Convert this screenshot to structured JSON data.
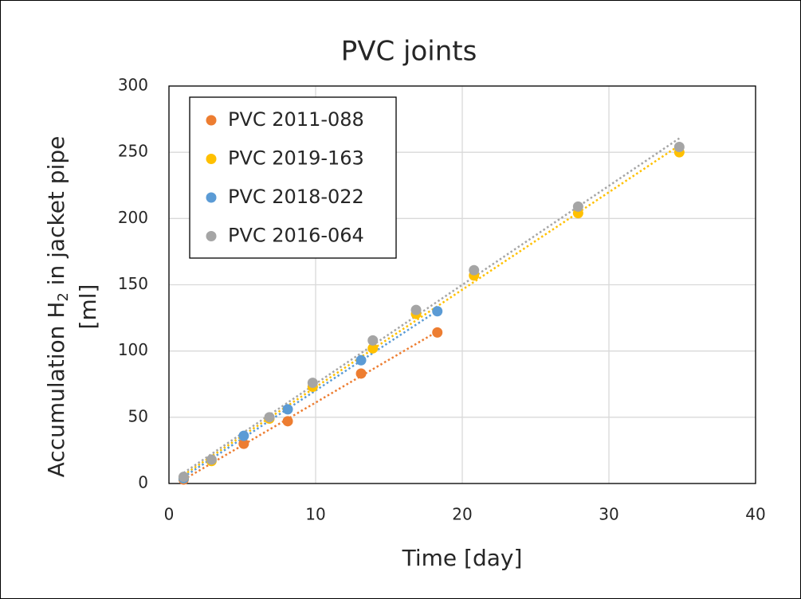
{
  "chart_data": {
    "type": "scatter",
    "title": "PVC joints",
    "xlabel": "Time [day]",
    "ylabel": {
      "main": "Accumulation H",
      "subscript": "2",
      "rest": " in jacket pipe",
      "line2": "[ml]"
    },
    "xlim": [
      0,
      40
    ],
    "xticks": [
      0,
      10,
      20,
      30,
      40
    ],
    "ylim": [
      0,
      300
    ],
    "yticks": [
      0,
      50,
      100,
      150,
      200,
      250,
      300
    ],
    "grid": true,
    "trendline": true,
    "legend": "upper left",
    "series": [
      {
        "name": "PVC 2011-088",
        "color": "#ed7d31",
        "x": [
          1,
          5.1,
          8.1,
          13.1,
          18.3
        ],
        "values": [
          3,
          30,
          47,
          83,
          114
        ]
      },
      {
        "name": "PVC 2019-163",
        "color": "#ffc000",
        "x": [
          1,
          2.9,
          6.85,
          9.8,
          13.9,
          16.85,
          20.8,
          27.9,
          34.8
        ],
        "values": [
          4,
          17,
          49,
          73,
          102,
          128,
          157,
          204,
          250
        ]
      },
      {
        "name": "PVC 2018-022",
        "color": "#5b9bd5",
        "x": [
          1,
          5.1,
          8.1,
          13.1,
          18.3
        ],
        "values": [
          4,
          36,
          56,
          93,
          130
        ]
      },
      {
        "name": "PVC 2016-064",
        "color": "#a5a5a5",
        "x": [
          1,
          2.9,
          6.85,
          9.8,
          13.9,
          16.85,
          20.8,
          27.9,
          34.8
        ],
        "values": [
          5,
          18,
          50,
          76,
          108,
          131,
          161,
          209,
          254
        ]
      }
    ]
  }
}
